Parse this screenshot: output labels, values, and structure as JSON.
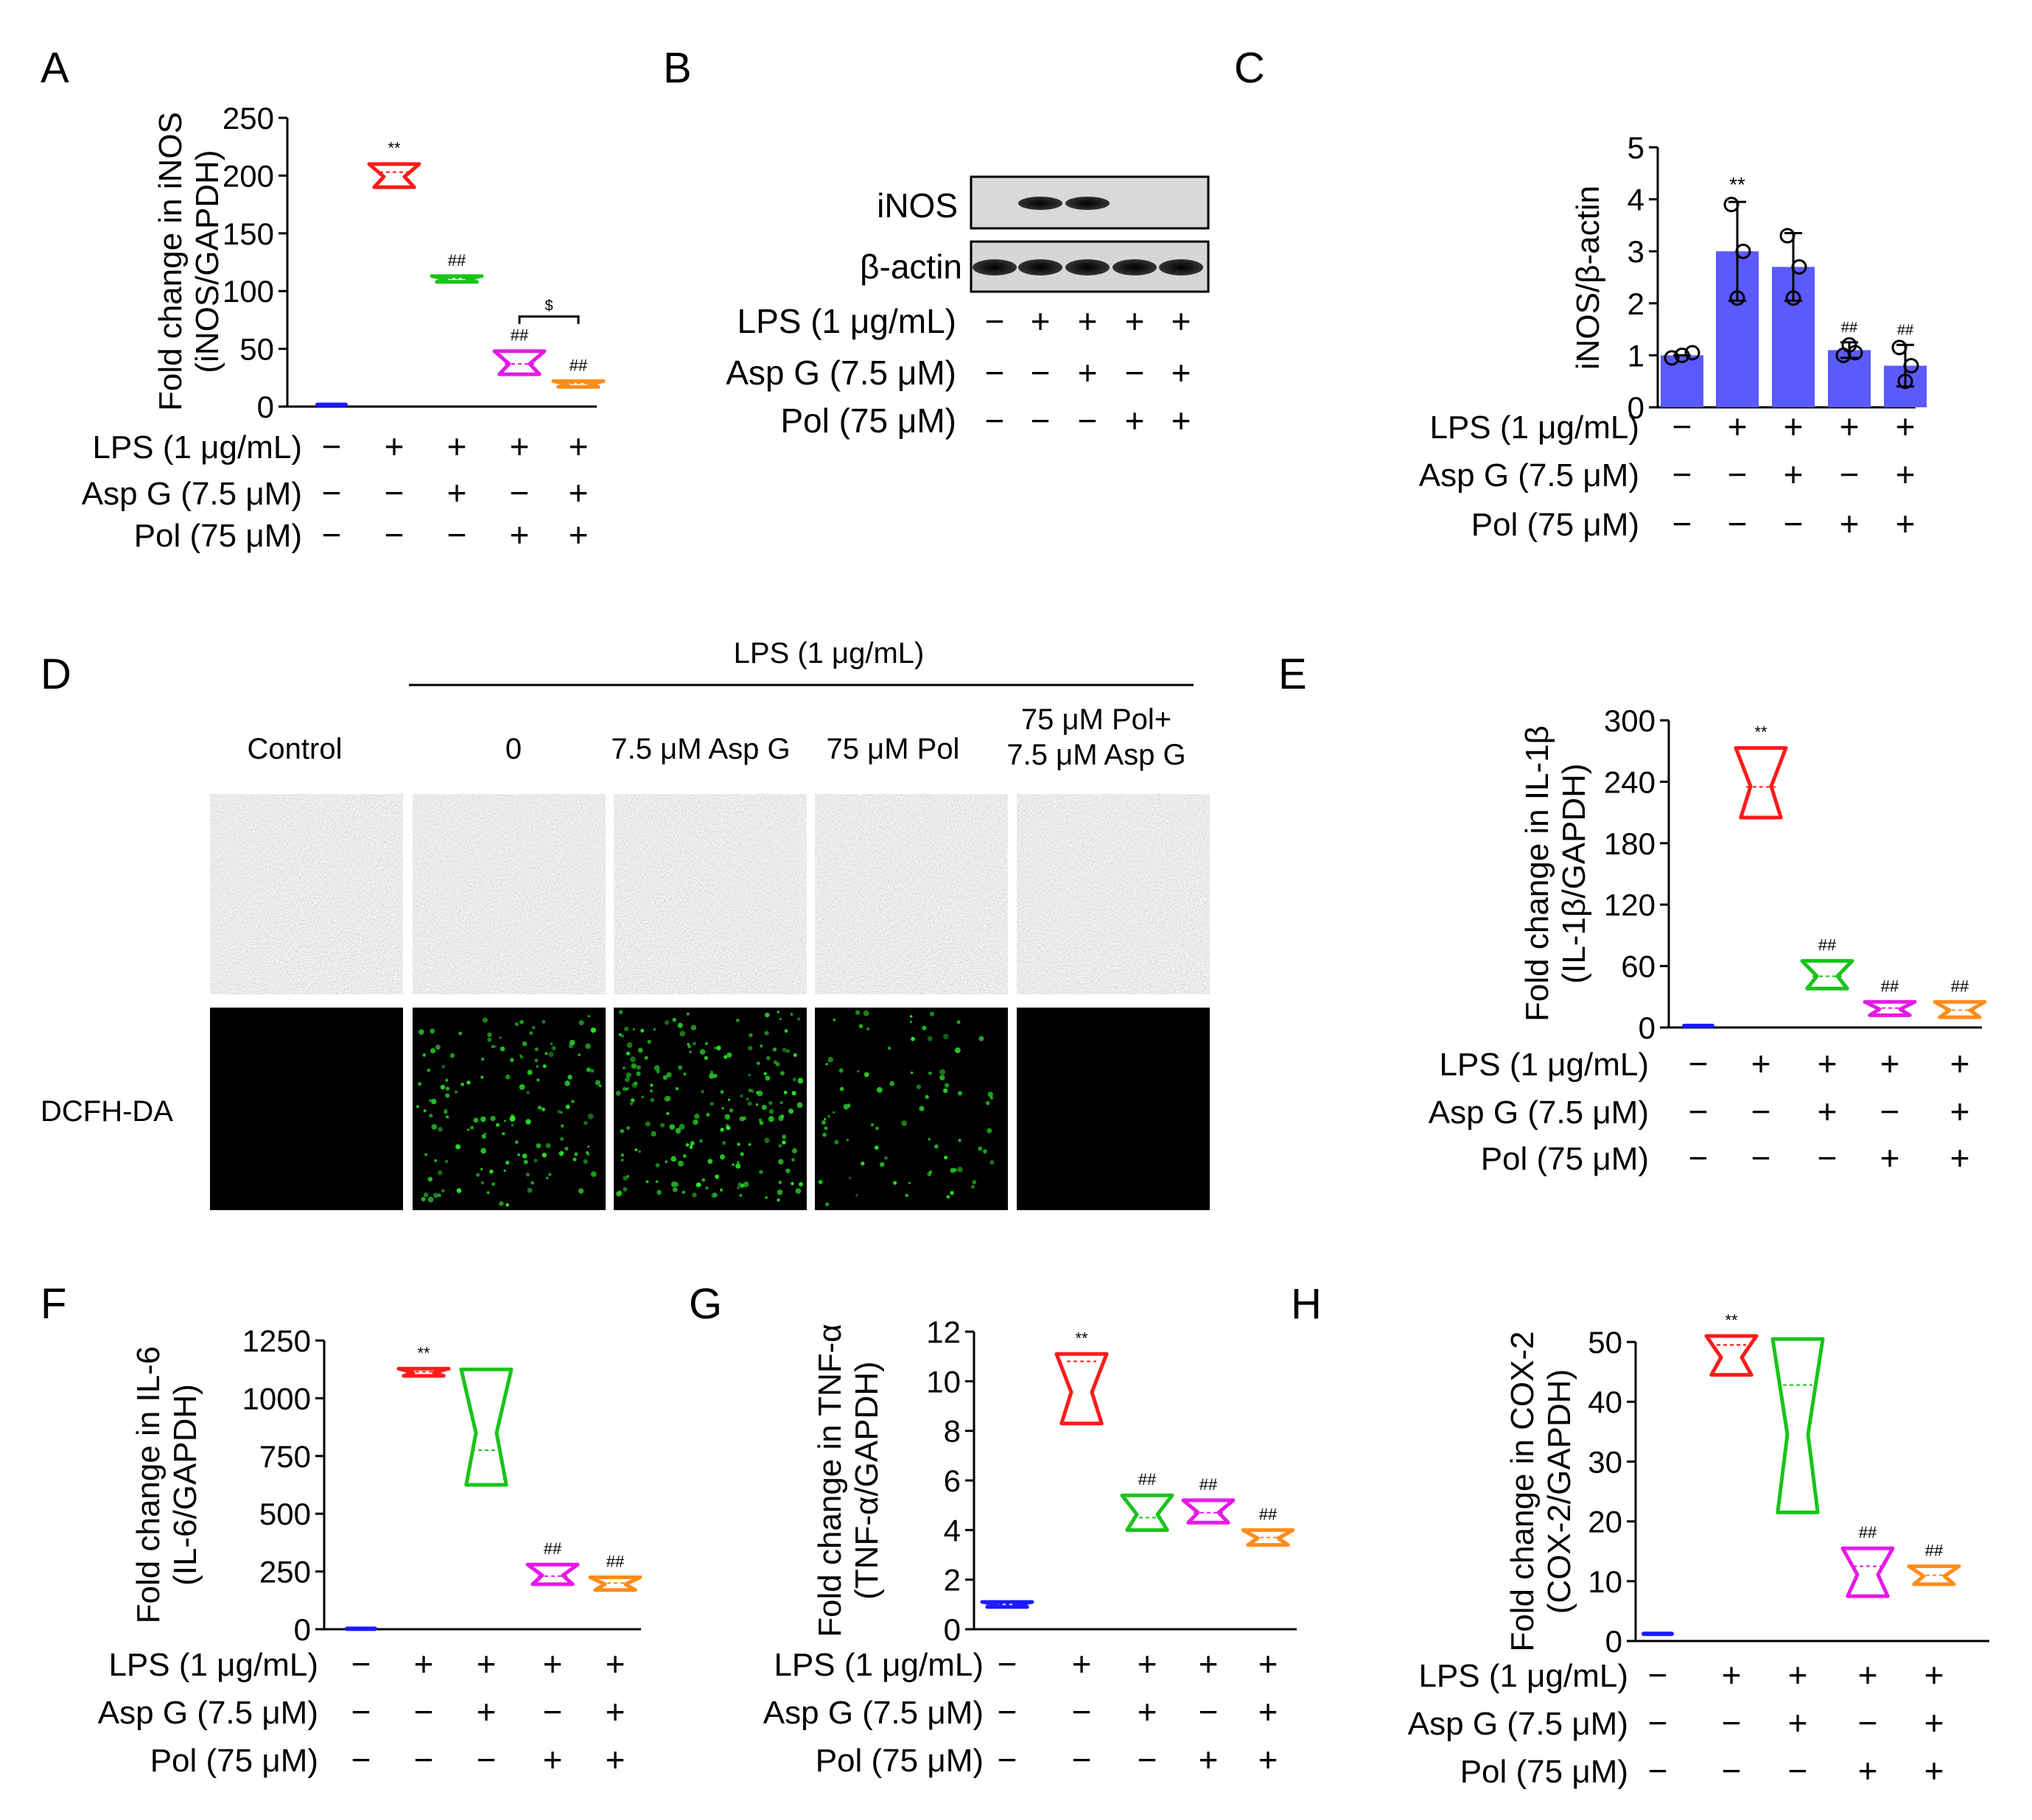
{
  "figure": {
    "rows": [
      "LPS (1 μg/mL)",
      "Asp G (7.5 μM)",
      "Pol (75 μM)"
    ],
    "signs": [
      [
        "−",
        "+",
        "+",
        "+",
        "+"
      ],
      [
        "−",
        "−",
        "+",
        "−",
        "+"
      ],
      [
        "−",
        "−",
        "−",
        "+",
        "+"
      ]
    ],
    "colors": [
      "#1a1aff",
      "#ff1a1a",
      "#19c419",
      "#e619e6",
      "#ff8c1a"
    ],
    "bar_color": "#5a5aff"
  },
  "panel_B": {
    "label": "B",
    "bands": [
      "iNOS",
      "β-actin"
    ]
  },
  "panel_D": {
    "label": "D",
    "header": "LPS (1 μg/mL)",
    "columns": [
      "Control",
      "0",
      "7.5 μM Asp G",
      "75 μM Pol",
      "75 μM Pol+\n7.5 μM Asp G"
    ],
    "row_label": "DCFH-DA"
  },
  "chart_data": [
    {
      "id": "A",
      "type": "violin",
      "title": "A",
      "ylabel": "Fold change in iNOS\n(iNOS/GAPDH)",
      "ylim": [
        0,
        250
      ],
      "yticks": [
        0,
        50,
        100,
        150,
        200,
        250
      ],
      "groups": [
        "Control",
        "LPS",
        "LPS+Asp G",
        "LPS+Pol",
        "LPS+Pol+Asp G"
      ],
      "ranges": [
        [
          0.5,
          1.5
        ],
        [
          190,
          210
        ],
        [
          108,
          113
        ],
        [
          28,
          48
        ],
        [
          17,
          22
        ]
      ],
      "medians": [
        1,
        203,
        111,
        37,
        20
      ],
      "annotations": [
        "",
        "**",
        "##",
        "##",
        "##"
      ],
      "bracket": {
        "from": 3,
        "to": 4,
        "label": "$",
        "y": 78
      }
    },
    {
      "id": "C",
      "type": "bar",
      "title": "C",
      "ylabel": "iNOS/β-actin",
      "ylim": [
        0,
        5
      ],
      "yticks": [
        0,
        1,
        2,
        3,
        4,
        5
      ],
      "groups": [
        "Control",
        "LPS",
        "LPS+Asp G",
        "LPS+Pol",
        "LPS+Pol+Asp G"
      ],
      "values": [
        1.0,
        3.0,
        2.7,
        1.1,
        0.8
      ],
      "errors": [
        [
          1,
          1
        ],
        [
          2.05,
          3.95
        ],
        [
          2.05,
          3.35
        ],
        [
          0.95,
          1.25
        ],
        [
          0.4,
          1.2
        ]
      ],
      "points": [
        [
          0.95,
          1.0,
          1.05
        ],
        [
          2.1,
          3.0,
          3.9
        ],
        [
          2.1,
          2.7,
          3.3
        ],
        [
          1.2,
          1.05,
          1.0
        ],
        [
          0.5,
          0.8,
          1.15
        ]
      ],
      "annotations": [
        "",
        "**",
        "",
        "##",
        "##"
      ]
    },
    {
      "id": "E",
      "type": "violin",
      "title": "E",
      "ylabel": "Fold change in IL-1β\n(IL-1β/GAPDH)",
      "ylim": [
        0,
        300
      ],
      "yticks": [
        0,
        60,
        120,
        180,
        240,
        300
      ],
      "groups": [
        "Control",
        "LPS",
        "LPS+Asp G",
        "LPS+Pol",
        "LPS+Pol+Asp G"
      ],
      "ranges": [
        [
          0.5,
          1.5
        ],
        [
          205,
          273
        ],
        [
          38,
          65
        ],
        [
          12,
          25
        ],
        [
          10,
          25
        ]
      ],
      "medians": [
        1,
        235,
        50,
        19,
        17
      ],
      "annotations": [
        "",
        "**",
        "##",
        "##",
        "##"
      ]
    },
    {
      "id": "F",
      "type": "violin",
      "title": "F",
      "ylabel": "Fold change in IL-6\n(IL-6/GAPDH)",
      "ylim": [
        0,
        1250
      ],
      "yticks": [
        0,
        250,
        500,
        750,
        1000,
        1250
      ],
      "groups": [
        "Control",
        "LPS",
        "LPS+Asp G",
        "LPS+Pol",
        "LPS+Pol+Asp G"
      ],
      "ranges": [
        [
          0.5,
          2
        ],
        [
          1097,
          1128
        ],
        [
          625,
          1125
        ],
        [
          195,
          280
        ],
        [
          170,
          225
        ]
      ],
      "medians": [
        1,
        1115,
        775,
        230,
        200
      ],
      "annotations": [
        "",
        "**",
        "",
        "##",
        "##"
      ]
    },
    {
      "id": "G",
      "type": "violin",
      "title": "G",
      "ylabel": "Fold change in TNF-α\n(TNF-α/GAPDH)",
      "ylim": [
        0,
        12
      ],
      "yticks": [
        0,
        2,
        4,
        6,
        8,
        10,
        12
      ],
      "groups": [
        "Control",
        "LPS",
        "LPS+Asp G",
        "LPS+Pol",
        "LPS+Pol+Asp G"
      ],
      "ranges": [
        [
          0.9,
          1.1
        ],
        [
          8.3,
          11.1
        ],
        [
          4.0,
          5.4
        ],
        [
          4.3,
          5.2
        ],
        [
          3.4,
          4.0
        ]
      ],
      "medians": [
        1,
        10.8,
        4.5,
        4.7,
        3.7
      ],
      "annotations": [
        "",
        "**",
        "##",
        "##",
        "##"
      ]
    },
    {
      "id": "H",
      "type": "violin",
      "title": "H",
      "ylabel": "Fold change in COX-2\n(COX-2/GAPDH)",
      "ylim": [
        0,
        50
      ],
      "yticks": [
        0,
        10,
        20,
        30,
        40,
        50
      ],
      "groups": [
        "Control",
        "LPS",
        "LPS+Asp G",
        "LPS+Pol",
        "LPS+Pol+Asp G"
      ],
      "ranges": [
        [
          0.8,
          1.2
        ],
        [
          44.5,
          51
        ],
        [
          21.5,
          50.5
        ],
        [
          7.5,
          15.5
        ],
        [
          9.5,
          12.5
        ]
      ],
      "medians": [
        1,
        49.5,
        42.8,
        12.5,
        11
      ],
      "annotations": [
        "",
        "**",
        "",
        "##",
        "##"
      ]
    }
  ]
}
